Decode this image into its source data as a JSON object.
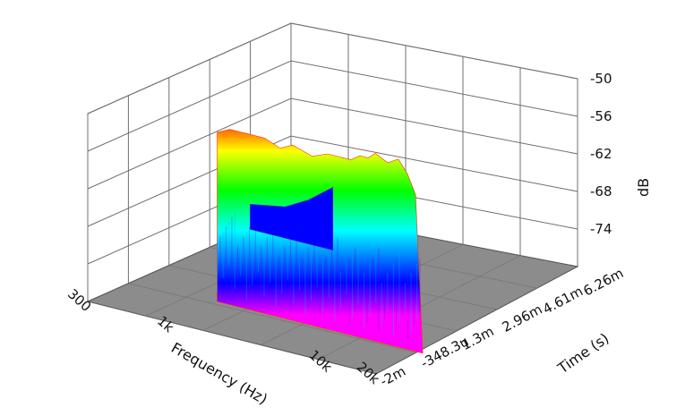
{
  "chart_data": {
    "type": "waterfall-3d",
    "xlabel": "Frequency (Hz)",
    "ylabel": "Time (s)",
    "zlabel": "dB",
    "x_scale": "log",
    "x_ticks": [
      "300",
      "1k",
      "10k",
      "20k"
    ],
    "x_tick_values": [
      300,
      1000,
      10000,
      20000
    ],
    "y_ticks": [
      "-2m",
      "-348.3u",
      "1.3m",
      "2.96m",
      "4.61m",
      "6.26m"
    ],
    "y_tick_values": [
      -0.002,
      -0.0003483,
      0.0013,
      0.00296,
      0.00461,
      0.00626
    ],
    "z_ticks": [
      "-50",
      "-56",
      "-62",
      "-68",
      "-74"
    ],
    "z_tick_values": [
      -50,
      -56,
      -62,
      -68,
      -74
    ],
    "zlim": [
      -80,
      -50
    ],
    "grid": true,
    "floor_color": "#8c8c8c",
    "colormap": [
      "#ff00ff",
      "#0000ff",
      "#00ffff",
      "#00ff00",
      "#ffff00",
      "#ff0000"
    ],
    "series": [
      {
        "time": -0.0001,
        "frequency": [
          1000,
          1200,
          1500,
          2000,
          2500,
          3000,
          4000,
          5000,
          6000,
          7000,
          8000,
          9000,
          10000,
          12000,
          14000,
          16000,
          18000,
          20000
        ],
        "level_db": [
          -53,
          -52,
          -52,
          -52,
          -53,
          -52,
          -53,
          -52,
          -52,
          -52,
          -51,
          -51,
          -50,
          -51,
          -50,
          -52,
          -55,
          -80
        ]
      },
      {
        "time": 0.0046,
        "frequency": [
          300,
          500,
          700,
          1000
        ],
        "level_db": [
          -76,
          -75,
          -73,
          -70
        ]
      }
    ]
  }
}
